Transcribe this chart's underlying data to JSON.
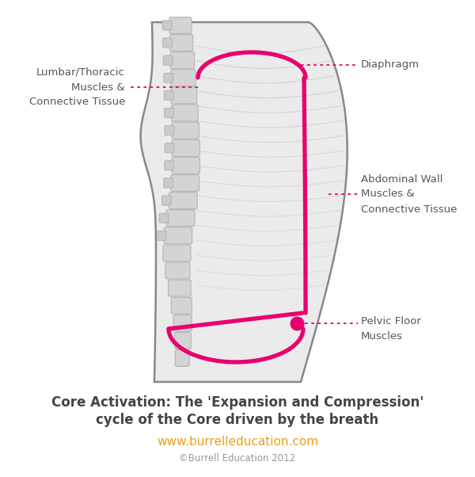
{
  "bg_color": "#ffffff",
  "body_fill": "#ebebeb",
  "body_outline": "#888888",
  "spine_fill": "#d0d0d0",
  "spine_outline": "#b8b8b8",
  "rib_color": "#cccccc",
  "pink": "#e8006e",
  "dotted_color": "#e8006e",
  "label_color": "#555555",
  "title_color": "#444444",
  "url_color": "#e8a020",
  "copyright_color": "#999999",
  "title_line1": "Core Activation: The 'Expansion and Compression'",
  "title_line2": "cycle of the Core driven by the breath",
  "url_text": "www.burrelleducation.com",
  "copyright_text": "©Burrell Education 2012",
  "label_lumbar": "Lumbar/Thoracic\nMuscles &\nConnective Tissue",
  "label_diaphragm": "Diaphragm",
  "label_abdominal": "Abdominal Wall\nMuscles &\nConnective Tissue",
  "label_pelvic": "Pelvic Floor\nMuscles",
  "figw": 6.0,
  "figh": 6.02,
  "dpi": 100
}
